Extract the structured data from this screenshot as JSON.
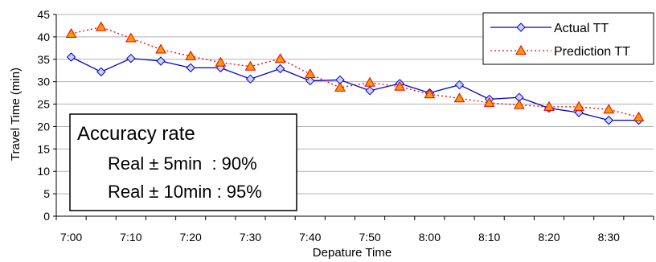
{
  "chart_data": {
    "type": "line",
    "xlabel": "Depature Time",
    "ylabel": "Travel Time (min)",
    "ylim": [
      0,
      45
    ],
    "yticks": [
      0,
      5,
      10,
      15,
      20,
      25,
      30,
      35,
      40,
      45
    ],
    "x": [
      "7:00",
      "7:05",
      "7:10",
      "7:15",
      "7:20",
      "7:25",
      "7:30",
      "7:35",
      "7:40",
      "7:45",
      "7:50",
      "7:55",
      "8:00",
      "8:05",
      "8:10",
      "8:15",
      "8:20",
      "8:25",
      "8:30",
      "8:35"
    ],
    "xtick_labels": [
      "7:00",
      "7:10",
      "7:20",
      "7:30",
      "7:40",
      "7:50",
      "8:00",
      "8:10",
      "8:20",
      "8:30"
    ],
    "grid": "horizontal",
    "legend_position": "top-right",
    "series": [
      {
        "name": "Actual TT",
        "color": "#0000cc",
        "marker_fill": "#c7d4f5",
        "line_style": "solid",
        "marker": "diamond",
        "values": [
          35.5,
          32.2,
          35.2,
          34.6,
          33.1,
          33.1,
          30.6,
          32.9,
          30.2,
          30.4,
          28.0,
          29.6,
          27.5,
          29.3,
          26.1,
          26.5,
          24.1,
          23.1,
          21.4,
          21.4
        ]
      },
      {
        "name": "Prediction TT",
        "color": "#ee0000",
        "marker_fill": "#ff9900",
        "line_style": "dotted",
        "marker": "triangle",
        "values": [
          40.7,
          42.2,
          39.7,
          37.2,
          35.7,
          34.3,
          33.4,
          35.1,
          31.7,
          28.7,
          29.8,
          28.9,
          27.2,
          26.3,
          25.3,
          24.8,
          24.4,
          24.4,
          23.8,
          22.1
        ]
      }
    ],
    "annotation": {
      "title": "Accuracy rate",
      "line1": "Real ± 5min  : 90%",
      "line2": "Real ± 10min : 95%"
    }
  }
}
